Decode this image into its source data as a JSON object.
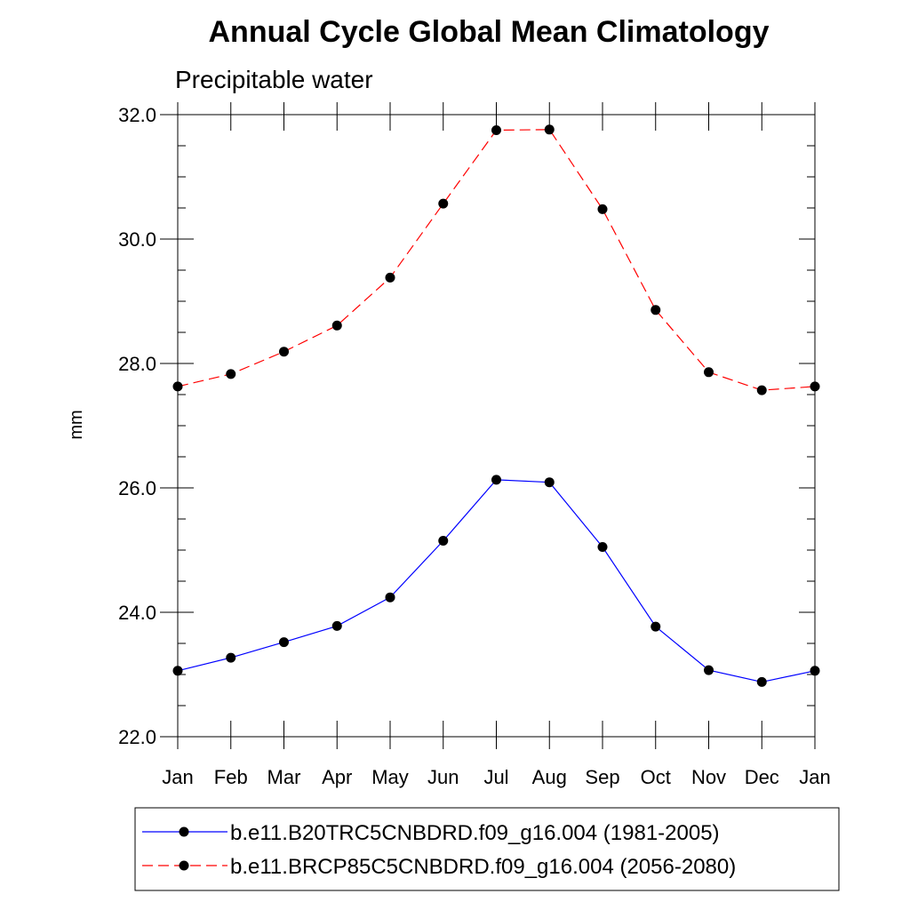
{
  "chart_data": {
    "type": "line",
    "title": "Annual Cycle Global Mean Climatology",
    "subtitle": "Precipitable water",
    "xlabel": "",
    "ylabel": "mm",
    "categories": [
      "Jan",
      "Feb",
      "Mar",
      "Apr",
      "May",
      "Jun",
      "Jul",
      "Aug",
      "Sep",
      "Oct",
      "Nov",
      "Dec",
      "Jan"
    ],
    "ylim": [
      22.0,
      32.0
    ],
    "yticks": [
      "22.0",
      "24.0",
      "26.0",
      "28.0",
      "30.0",
      "32.0"
    ],
    "grid": false,
    "legend_position": "bottom",
    "series": [
      {
        "name": "b.e11.B20TRC5CNBDRD.f09_g16.004 (1981-2005)",
        "color": "#0000ff",
        "style": "solid",
        "marker": "circle",
        "values": [
          23.06,
          23.27,
          23.52,
          23.78,
          24.24,
          25.15,
          26.13,
          26.09,
          25.05,
          23.77,
          23.07,
          22.88,
          23.06
        ]
      },
      {
        "name": "b.e11.BRCP85C5CNBDRD.f09_g16.004 (2056-2080)",
        "color": "#ff0000",
        "style": "dashed",
        "marker": "circle",
        "values": [
          27.63,
          27.83,
          28.19,
          28.61,
          29.38,
          30.57,
          31.75,
          31.76,
          30.48,
          28.86,
          27.86,
          27.57,
          27.63
        ]
      }
    ]
  }
}
